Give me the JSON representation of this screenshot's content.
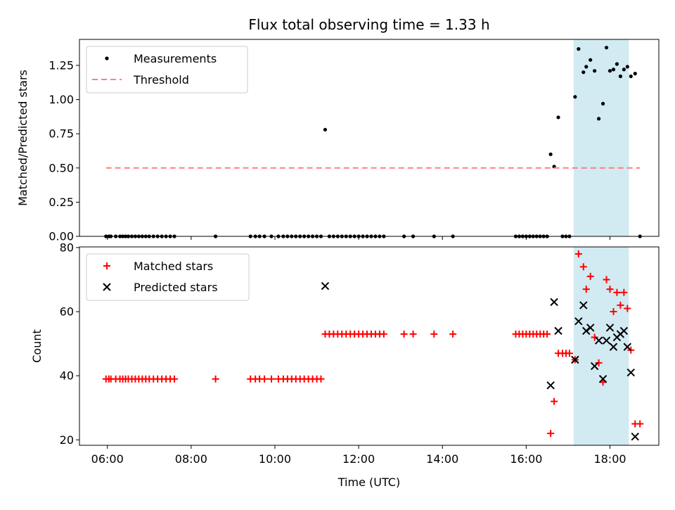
{
  "chart_data": {
    "title": "Flux total observing time = 1.33 h",
    "xlabel": "Time (UTC)",
    "xlim": [
      "05:20",
      "19:10"
    ],
    "x_ticks": [
      "06:00",
      "08:00",
      "10:00",
      "12:00",
      "14:00",
      "16:00",
      "18:00"
    ],
    "highlight_interval": {
      "start": "17:08",
      "end": "18:27",
      "color": "#add8e6"
    },
    "panels": [
      {
        "type": "scatter",
        "ylabel": "Matched/Predicted stars",
        "ylim": [
          0,
          1.44
        ],
        "y_ticks": [
          "0.00",
          "0.25",
          "0.50",
          "0.75",
          "1.00",
          "1.25"
        ],
        "legend_position": "upper-left",
        "series": [
          {
            "name": "Measurements",
            "marker": "dot",
            "color": "#000000",
            "points": [
              [
                "05:58",
                0
              ],
              [
                "06:02",
                0
              ],
              [
                "06:05",
                0
              ],
              [
                "06:12",
                0
              ],
              [
                "06:18",
                0
              ],
              [
                "06:22",
                0
              ],
              [
                "06:26",
                0
              ],
              [
                "06:30",
                0
              ],
              [
                "06:35",
                0
              ],
              [
                "06:40",
                0
              ],
              [
                "06:45",
                0
              ],
              [
                "06:50",
                0
              ],
              [
                "06:55",
                0
              ],
              [
                "07:00",
                0
              ],
              [
                "07:06",
                0
              ],
              [
                "07:12",
                0
              ],
              [
                "07:18",
                0
              ],
              [
                "07:24",
                0
              ],
              [
                "07:30",
                0
              ],
              [
                "07:36",
                0
              ],
              [
                "08:35",
                0
              ],
              [
                "09:25",
                0
              ],
              [
                "09:32",
                0
              ],
              [
                "09:38",
                0
              ],
              [
                "09:45",
                0
              ],
              [
                "09:55",
                0
              ],
              [
                "10:05",
                0
              ],
              [
                "10:12",
                0
              ],
              [
                "10:18",
                0
              ],
              [
                "10:24",
                0
              ],
              [
                "10:30",
                0
              ],
              [
                "10:36",
                0
              ],
              [
                "10:42",
                0
              ],
              [
                "10:48",
                0
              ],
              [
                "10:54",
                0
              ],
              [
                "11:00",
                0
              ],
              [
                "11:06",
                0
              ],
              [
                "11:12",
                0.78
              ],
              [
                "11:18",
                0
              ],
              [
                "11:24",
                0
              ],
              [
                "11:30",
                0
              ],
              [
                "11:36",
                0
              ],
              [
                "11:42",
                0
              ],
              [
                "11:48",
                0
              ],
              [
                "11:54",
                0
              ],
              [
                "12:00",
                0
              ],
              [
                "12:06",
                0
              ],
              [
                "12:12",
                0
              ],
              [
                "12:18",
                0
              ],
              [
                "12:24",
                0
              ],
              [
                "12:30",
                0
              ],
              [
                "12:36",
                0
              ],
              [
                "13:05",
                0
              ],
              [
                "13:18",
                0
              ],
              [
                "13:48",
                0
              ],
              [
                "14:15",
                0
              ],
              [
                "15:45",
                0
              ],
              [
                "15:50",
                0
              ],
              [
                "15:55",
                0
              ],
              [
                "16:00",
                0
              ],
              [
                "16:05",
                0
              ],
              [
                "16:10",
                0
              ],
              [
                "16:15",
                0
              ],
              [
                "16:20",
                0
              ],
              [
                "16:25",
                0
              ],
              [
                "16:30",
                0
              ],
              [
                "16:35",
                0.6
              ],
              [
                "16:40",
                0.51
              ],
              [
                "16:46",
                0.87
              ],
              [
                "16:52",
                0
              ],
              [
                "16:57",
                0
              ],
              [
                "17:02",
                0
              ],
              [
                "17:10",
                1.02
              ],
              [
                "17:15",
                1.37
              ],
              [
                "17:22",
                1.2
              ],
              [
                "17:26",
                1.24
              ],
              [
                "17:32",
                1.29
              ],
              [
                "17:38",
                1.21
              ],
              [
                "17:44",
                0.86
              ],
              [
                "17:50",
                0.97
              ],
              [
                "17:55",
                1.38
              ],
              [
                "18:00",
                1.21
              ],
              [
                "18:05",
                1.22
              ],
              [
                "18:10",
                1.26
              ],
              [
                "18:15",
                1.17
              ],
              [
                "18:20",
                1.22
              ],
              [
                "18:25",
                1.24
              ],
              [
                "18:30",
                1.17
              ],
              [
                "18:36",
                1.19
              ],
              [
                "18:43",
                0
              ]
            ]
          },
          {
            "name": "Threshold",
            "marker": "dashed-line",
            "color": "#ff7f7f",
            "points": [
              [
                "05:58",
                0.5
              ],
              [
                "18:43",
                0.5
              ]
            ]
          }
        ]
      },
      {
        "type": "scatter",
        "ylabel": "Count",
        "ylim": [
          18.3,
          80.2
        ],
        "y_ticks": [
          "20",
          "40",
          "60",
          "80"
        ],
        "legend_position": "upper-left",
        "series": [
          {
            "name": "Matched stars",
            "marker": "plus",
            "color": "#ff0000",
            "points": [
              [
                "05:58",
                39
              ],
              [
                "06:02",
                39
              ],
              [
                "06:05",
                39
              ],
              [
                "06:12",
                39
              ],
              [
                "06:18",
                39
              ],
              [
                "06:22",
                39
              ],
              [
                "06:26",
                39
              ],
              [
                "06:30",
                39
              ],
              [
                "06:35",
                39
              ],
              [
                "06:40",
                39
              ],
              [
                "06:45",
                39
              ],
              [
                "06:50",
                39
              ],
              [
                "06:55",
                39
              ],
              [
                "07:00",
                39
              ],
              [
                "07:06",
                39
              ],
              [
                "07:12",
                39
              ],
              [
                "07:18",
                39
              ],
              [
                "07:24",
                39
              ],
              [
                "07:30",
                39
              ],
              [
                "07:36",
                39
              ],
              [
                "08:35",
                39
              ],
              [
                "09:25",
                39
              ],
              [
                "09:32",
                39
              ],
              [
                "09:38",
                39
              ],
              [
                "09:45",
                39
              ],
              [
                "09:55",
                39
              ],
              [
                "10:05",
                39
              ],
              [
                "10:12",
                39
              ],
              [
                "10:18",
                39
              ],
              [
                "10:24",
                39
              ],
              [
                "10:30",
                39
              ],
              [
                "10:36",
                39
              ],
              [
                "10:42",
                39
              ],
              [
                "10:48",
                39
              ],
              [
                "10:54",
                39
              ],
              [
                "11:00",
                39
              ],
              [
                "11:06",
                39
              ],
              [
                "11:12",
                53
              ],
              [
                "11:18",
                53
              ],
              [
                "11:24",
                53
              ],
              [
                "11:30",
                53
              ],
              [
                "11:36",
                53
              ],
              [
                "11:42",
                53
              ],
              [
                "11:48",
                53
              ],
              [
                "11:54",
                53
              ],
              [
                "12:00",
                53
              ],
              [
                "12:06",
                53
              ],
              [
                "12:12",
                53
              ],
              [
                "12:18",
                53
              ],
              [
                "12:24",
                53
              ],
              [
                "12:30",
                53
              ],
              [
                "12:36",
                53
              ],
              [
                "13:05",
                53
              ],
              [
                "13:18",
                53
              ],
              [
                "13:48",
                53
              ],
              [
                "14:15",
                53
              ],
              [
                "15:45",
                53
              ],
              [
                "15:50",
                53
              ],
              [
                "15:55",
                53
              ],
              [
                "16:00",
                53
              ],
              [
                "16:05",
                53
              ],
              [
                "16:10",
                53
              ],
              [
                "16:15",
                53
              ],
              [
                "16:20",
                53
              ],
              [
                "16:25",
                53
              ],
              [
                "16:30",
                53
              ],
              [
                "16:35",
                22
              ],
              [
                "16:40",
                32
              ],
              [
                "16:46",
                47
              ],
              [
                "16:52",
                47
              ],
              [
                "16:57",
                47
              ],
              [
                "17:02",
                47
              ],
              [
                "17:10",
                45
              ],
              [
                "17:15",
                78
              ],
              [
                "17:22",
                74
              ],
              [
                "17:26",
                67
              ],
              [
                "17:32",
                71
              ],
              [
                "17:38",
                52
              ],
              [
                "17:44",
                44
              ],
              [
                "17:50",
                38
              ],
              [
                "17:55",
                70
              ],
              [
                "18:00",
                67
              ],
              [
                "18:05",
                60
              ],
              [
                "18:10",
                66
              ],
              [
                "18:15",
                62
              ],
              [
                "18:20",
                66
              ],
              [
                "18:25",
                61
              ],
              [
                "18:30",
                48
              ],
              [
                "18:36",
                25
              ],
              [
                "18:43",
                25
              ]
            ]
          },
          {
            "name": "Predicted stars",
            "marker": "x",
            "color": "#000000",
            "points": [
              [
                "11:12",
                68
              ],
              [
                "16:35",
                37
              ],
              [
                "16:40",
                63
              ],
              [
                "16:46",
                54
              ],
              [
                "17:10",
                45
              ],
              [
                "17:15",
                57
              ],
              [
                "17:22",
                62
              ],
              [
                "17:26",
                54
              ],
              [
                "17:32",
                55
              ],
              [
                "17:38",
                43
              ],
              [
                "17:44",
                51
              ],
              [
                "17:50",
                39
              ],
              [
                "17:55",
                51
              ],
              [
                "18:00",
                55
              ],
              [
                "18:05",
                49
              ],
              [
                "18:10",
                52
              ],
              [
                "18:15",
                53
              ],
              [
                "18:20",
                54
              ],
              [
                "18:25",
                49
              ],
              [
                "18:30",
                41
              ],
              [
                "18:36",
                21
              ]
            ]
          }
        ]
      }
    ]
  }
}
